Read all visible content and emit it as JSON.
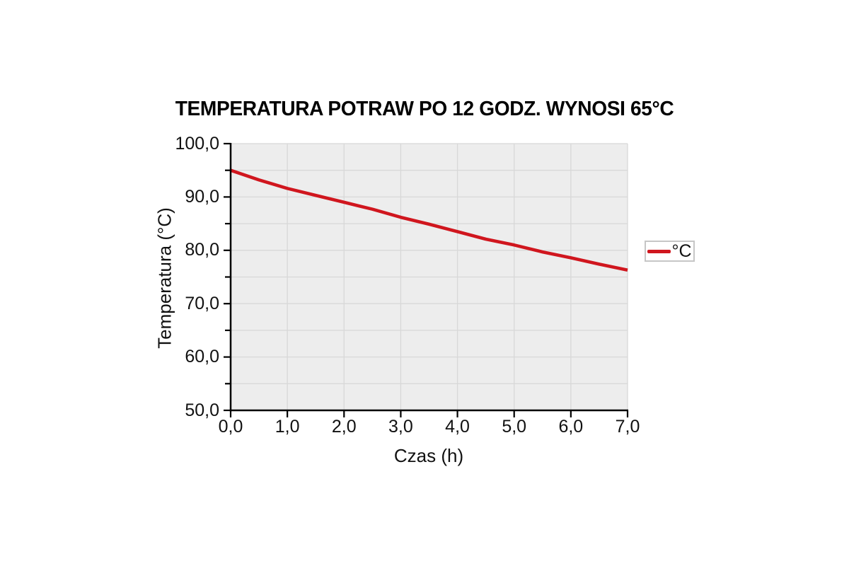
{
  "page": {
    "background": "#ffffff"
  },
  "chart_data": {
    "type": "line",
    "title": "TEMPERATURA POTRAW PO 12 GODZ. WYNOSI 65°C",
    "xlabel": "Czas (h)",
    "ylabel": "Temperatura (°C)",
    "xlim": [
      0,
      7
    ],
    "ylim": [
      50,
      100
    ],
    "x": [
      0,
      0.5,
      1,
      1.5,
      2,
      2.5,
      3,
      3.5,
      4,
      4.5,
      5,
      5.5,
      6,
      6.5,
      7
    ],
    "series": [
      {
        "name": "°C",
        "color": "#d0161e",
        "values": [
          95.0,
          93.2,
          91.6,
          90.3,
          89.0,
          87.7,
          86.2,
          84.9,
          83.5,
          82.1,
          81.0,
          79.7,
          78.6,
          77.4,
          76.3
        ]
      }
    ],
    "legend": {
      "position": "right",
      "entries": [
        {
          "label": "°C",
          "color": "#d0161e"
        }
      ]
    },
    "xticks": {
      "values": [
        0,
        1,
        2,
        3,
        4,
        5,
        6,
        7
      ],
      "labels": [
        "0,0",
        "1,0",
        "2,0",
        "3,0",
        "4,0",
        "5,0",
        "6,0",
        "7,0"
      ]
    },
    "yticks_major": {
      "values": [
        100,
        90,
        80,
        70,
        60,
        50
      ],
      "labels": [
        "100,0",
        "90,0",
        "80,0",
        "70,0",
        "60,0",
        "50,0"
      ]
    },
    "yticks_minor": [
      95,
      85,
      75,
      65,
      55
    ],
    "grid": {
      "horizontal_step": 5,
      "vertical_step": 1,
      "visible": true
    },
    "colors": {
      "plot_background": "#ededed",
      "gridline": "#d8d8d8",
      "axis": "#000000",
      "line": "#d0161e",
      "legend_border": "#c6c6c6",
      "text": "#111111"
    }
  }
}
